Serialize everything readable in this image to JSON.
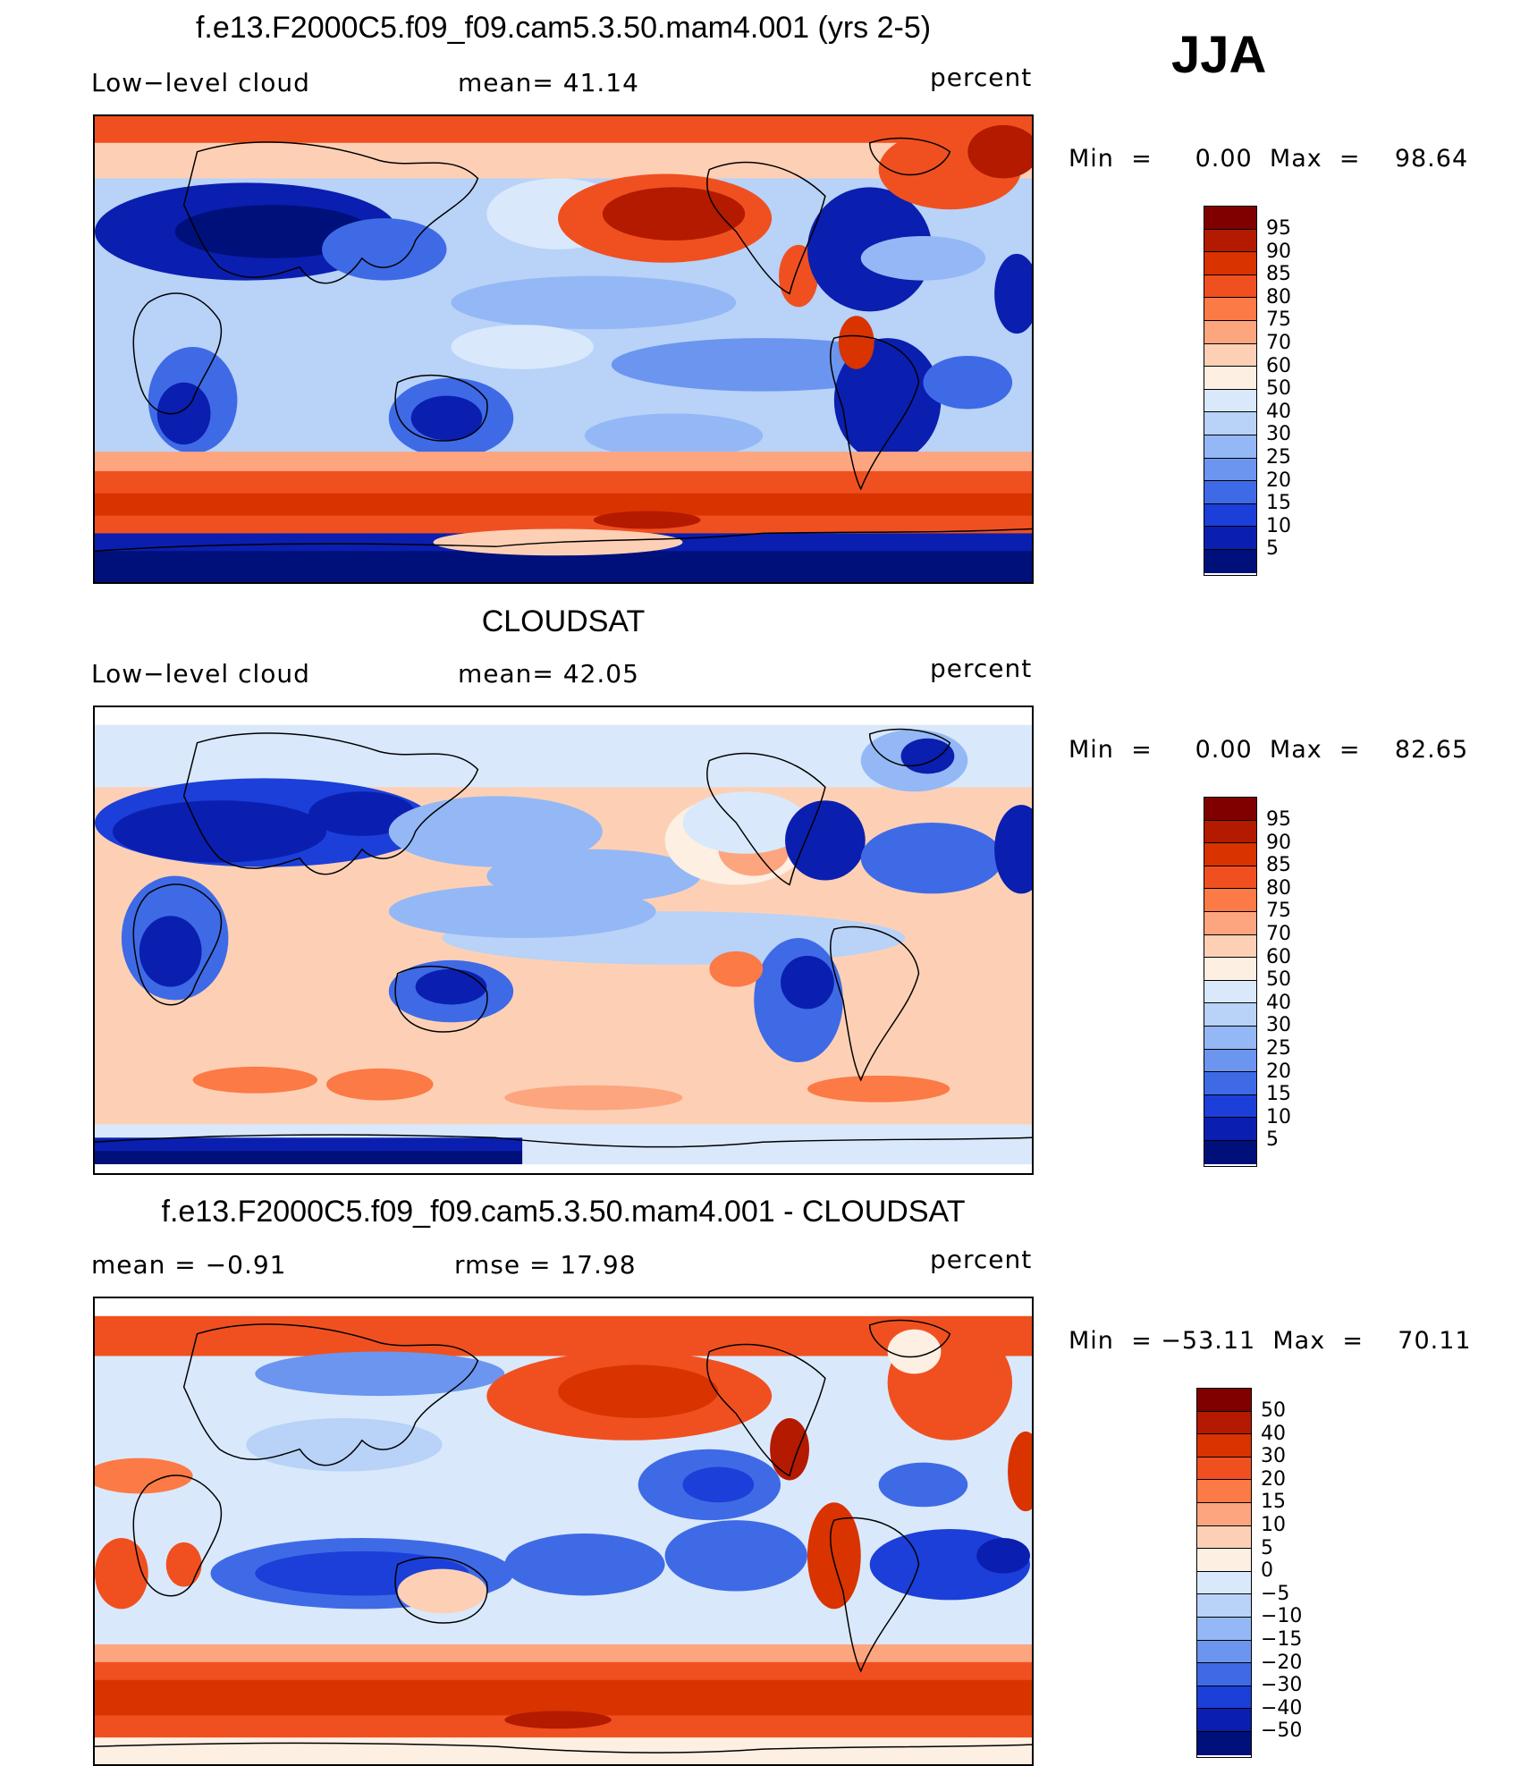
{
  "season": "JJA",
  "panels": [
    {
      "title": "f.e13.F2000C5.f09_f09.cam5.3.50.mam4.001 (yrs 2-5)",
      "left_label": "Low−level  cloud",
      "mid_label": "mean=   41.14",
      "right_label": "percent",
      "minmax": "Min  =     0.00  Max  =    98.64",
      "colorbar_levels": [
        "95",
        "90",
        "85",
        "80",
        "75",
        "70",
        "60",
        "50",
        "40",
        "30",
        "25",
        "20",
        "15",
        "10",
        "5"
      ],
      "colors": [
        "#800000",
        "#b31a00",
        "#d93300",
        "#f05020",
        "#fb7a45",
        "#fca57f",
        "#fdd0b5",
        "#fdefe2",
        "#d9e9fb",
        "#b8d2f8",
        "#94b8f5",
        "#6b95ef",
        "#3f6ae6",
        "#1b3fd8",
        "#0a1fb0",
        "#00107a"
      ]
    },
    {
      "title": "CLOUDSAT",
      "left_label": "Low−level  cloud",
      "mid_label": "mean=   42.05",
      "right_label": "percent",
      "minmax": "Min  =     0.00  Max  =    82.65",
      "colorbar_levels": [
        "95",
        "90",
        "85",
        "80",
        "75",
        "70",
        "60",
        "50",
        "40",
        "30",
        "25",
        "20",
        "15",
        "10",
        "5"
      ],
      "colors": [
        "#800000",
        "#b31a00",
        "#d93300",
        "#f05020",
        "#fb7a45",
        "#fca57f",
        "#fdd0b5",
        "#fdefe2",
        "#d9e9fb",
        "#b8d2f8",
        "#94b8f5",
        "#6b95ef",
        "#3f6ae6",
        "#1b3fd8",
        "#0a1fb0",
        "#00107a"
      ]
    },
    {
      "title": "f.e13.F2000C5.f09_f09.cam5.3.50.mam4.001 - CLOUDSAT",
      "left_label": "mean  =    −0.91",
      "mid_label": "rmse  =    17.98",
      "right_label": "percent",
      "minmax": "Min  = −53.11  Max  =    70.11",
      "colorbar_levels": [
        "50",
        "40",
        "30",
        "20",
        "15",
        "10",
        "5",
        "0",
        "−5",
        "−10",
        "−15",
        "−20",
        "−30",
        "−40",
        "−50"
      ],
      "colors": [
        "#800000",
        "#b31a00",
        "#d93300",
        "#f05020",
        "#fb7a45",
        "#fca57f",
        "#fdd0b5",
        "#fdefe2",
        "#d9e9fb",
        "#b8d2f8",
        "#94b8f5",
        "#6b95ef",
        "#3f6ae6",
        "#1b3fd8",
        "#0a1fb0",
        "#00107a"
      ]
    }
  ]
}
